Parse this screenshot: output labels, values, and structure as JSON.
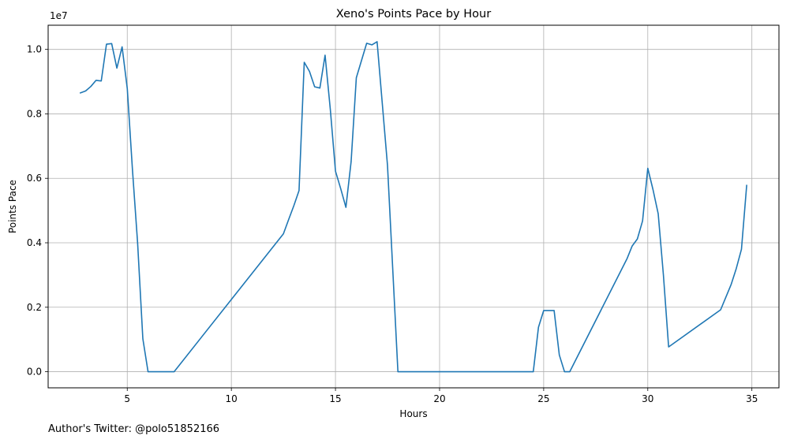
{
  "chart_data": {
    "type": "line",
    "title": "Xeno's Points Pace by Hour",
    "xlabel": "Hours",
    "ylabel": "Points Pace",
    "offset_label": "1e7",
    "xlim": [
      1.2,
      36.3
    ],
    "ylim": [
      -0.05,
      1.075
    ],
    "x_ticks": [
      5,
      10,
      15,
      20,
      25,
      30,
      35
    ],
    "y_ticks": [
      0.0,
      0.2,
      0.4,
      0.6,
      0.8,
      1.0
    ],
    "y_tick_labels": [
      "0.0",
      "0.2",
      "0.4",
      "0.6",
      "0.8",
      "1.0"
    ],
    "grid": true,
    "color": "#1f77b4",
    "series": [
      {
        "x": [
          2.75,
          3.0,
          3.25,
          3.5,
          3.75,
          4.0,
          4.25,
          4.5,
          4.75,
          5.0,
          5.25,
          5.5,
          5.75,
          6.0,
          7.25,
          12.5,
          12.75,
          13.0,
          13.25,
          13.5,
          13.75,
          14.0,
          14.25,
          14.5,
          14.75,
          15.0,
          15.25,
          15.5,
          15.75,
          16.0,
          16.5,
          16.75,
          17.0,
          17.5,
          18.0,
          24.5,
          24.75,
          25.0,
          25.25,
          25.5,
          25.75,
          26.0,
          26.25,
          29.0,
          29.25,
          29.5,
          29.75,
          30.0,
          30.25,
          30.5,
          30.75,
          31.0,
          33.5,
          34.0,
          34.25,
          34.5,
          34.75
        ],
        "y": [
          0.865,
          0.871,
          0.885,
          0.904,
          0.902,
          1.016,
          1.018,
          0.942,
          1.008,
          0.878,
          0.628,
          0.398,
          0.102,
          0.0,
          0.0,
          0.428,
          0.472,
          0.515,
          0.562,
          0.96,
          0.932,
          0.884,
          0.88,
          0.982,
          0.815,
          0.622,
          0.568,
          0.51,
          0.652,
          0.912,
          1.019,
          1.014,
          1.024,
          0.64,
          0.0,
          0.0,
          0.138,
          0.19,
          0.19,
          0.19,
          0.052,
          0.0,
          0.0,
          0.35,
          0.39,
          0.412,
          0.468,
          0.631,
          0.565,
          0.49,
          0.3,
          0.077,
          0.192,
          0.27,
          0.32,
          0.38,
          0.578
        ]
      }
    ]
  },
  "footer": {
    "text": "Author's Twitter: @polo51852166"
  }
}
